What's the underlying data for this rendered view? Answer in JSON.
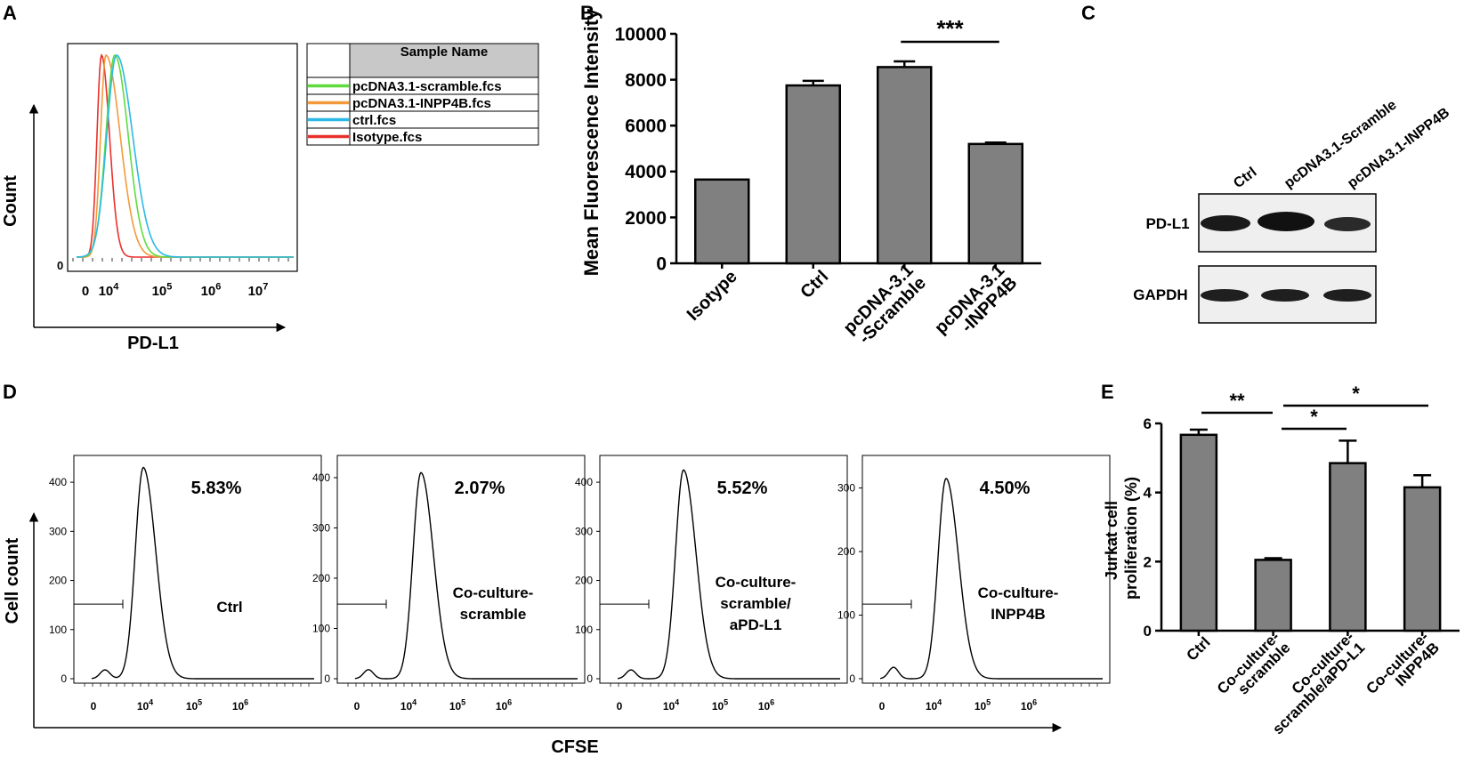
{
  "panels": {
    "A": "A",
    "B": "B",
    "C": "C",
    "D": "D",
    "E": "E"
  },
  "panel_a": {
    "ylabel": "Count",
    "xlabel": "PD-L1",
    "y_zero": "0",
    "legend_header": "Sample Name",
    "x_ticks": [
      {
        "base": "0",
        "exp": ""
      },
      {
        "base": "10",
        "exp": "4"
      },
      {
        "base": "10",
        "exp": "5"
      },
      {
        "base": "10",
        "exp": "6"
      },
      {
        "base": "10",
        "exp": "7"
      }
    ],
    "legend": [
      {
        "label": "pcDNA3.1-scramble.fcs",
        "color": "#5fdc3c"
      },
      {
        "label": "pcDNA3.1-INPP4B.fcs",
        "color": "#f39a3a"
      },
      {
        "label": "ctrl.fcs",
        "color": "#2cb9e6"
      },
      {
        "label": "Isotype.fcs",
        "color": "#e8312b"
      }
    ]
  },
  "panel_c": {
    "lanes": [
      "Ctrl",
      "pcDNA3.1-Scramble",
      "pcDNA3.1-INPP4B"
    ],
    "rows": [
      "PD-L1",
      "GAPDH"
    ]
  },
  "panel_d": {
    "ylabel": "Cell count",
    "xlabel": "CFSE",
    "plots": [
      {
        "percent": "5.83%",
        "label1": "Ctrl",
        "label2": "",
        "label3": "",
        "y_ticks": [
          "0",
          "100",
          "200",
          "300",
          "400"
        ],
        "ymax": 440,
        "peak": 430
      },
      {
        "percent": "2.07%",
        "label1": "Co-culture-",
        "label2": "scramble",
        "label3": "",
        "y_ticks": [
          "0",
          "100",
          "200",
          "300",
          "400"
        ],
        "ymax": 430,
        "peak": 410
      },
      {
        "percent": "5.52%",
        "label1": "Co-culture-",
        "label2": "scramble/",
        "label3": "aPD-L1",
        "y_ticks": [
          "0",
          "100",
          "200",
          "300",
          "400"
        ],
        "ymax": 440,
        "peak": 425
      },
      {
        "percent": "4.50%",
        "label1": "Co-culture-",
        "label2": "INPP4B",
        "label3": "",
        "y_ticks": [
          "0",
          "100",
          "200",
          "300"
        ],
        "ymax": 340,
        "peak": 315
      }
    ],
    "x_ticks": [
      {
        "base": "0",
        "exp": ""
      },
      {
        "base": "10",
        "exp": "4"
      },
      {
        "base": "10",
        "exp": "5"
      },
      {
        "base": "10",
        "exp": "6"
      }
    ]
  },
  "chart_data": [
    {
      "type": "bar",
      "id": "B",
      "title": "",
      "xlabel": "",
      "ylabel": "Mean Fluorescence Intensity",
      "categories": [
        "Isotype",
        "Ctrl",
        "pcDNA-3.1 -Scramble",
        "pcDNA-3.1 -INPP4B"
      ],
      "category_lines": [
        [
          "Isotype"
        ],
        [
          "Ctrl"
        ],
        [
          "pcDNA-3.1",
          "-Scramble"
        ],
        [
          "pcDNA-3.1",
          "-INPP4B"
        ]
      ],
      "values": [
        3650,
        7750,
        8550,
        5200
      ],
      "errors": [
        0,
        200,
        250,
        60
      ],
      "ylim": [
        0,
        10000
      ],
      "yticks": [
        "0",
        "2000",
        "4000",
        "6000",
        "8000",
        "10000"
      ],
      "significance": [
        {
          "from": 2,
          "to": 3,
          "label": "***"
        }
      ]
    },
    {
      "type": "bar",
      "id": "E",
      "title": "",
      "xlabel": "",
      "ylabel": "Jurkat cell proliferation (%)",
      "categories": [
        "Ctrl",
        "Co-culture-scramble",
        "Co-culture-scramble/aPD-L1",
        "Co-culture-INPP4B"
      ],
      "category_lines": [
        [
          "Ctrl"
        ],
        [
          "Co-culture-",
          "scramble"
        ],
        [
          "Co-culture-",
          "scramble/aPD-L1"
        ],
        [
          "Co-culture-",
          "INPP4B"
        ]
      ],
      "values": [
        5.67,
        2.05,
        4.85,
        4.15
      ],
      "errors": [
        0.15,
        0.05,
        0.65,
        0.35
      ],
      "ylim": [
        0,
        6
      ],
      "yticks": [
        "0",
        "2",
        "4",
        "6"
      ],
      "significance": [
        {
          "from": 0,
          "to": 1,
          "label": "**"
        },
        {
          "from": 1,
          "to": 2,
          "label": "*"
        },
        {
          "from": 1,
          "to": 3,
          "label": "*"
        }
      ]
    }
  ]
}
